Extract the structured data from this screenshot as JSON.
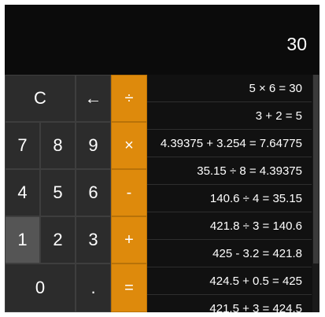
{
  "display": {
    "value": "30"
  },
  "keypad": {
    "clear": "C",
    "backspace": "←",
    "divide": "÷",
    "seven": "7",
    "eight": "8",
    "nine": "9",
    "multiply": "×",
    "four": "4",
    "five": "5",
    "six": "6",
    "subtract": "-",
    "one": "1",
    "two": "2",
    "three": "3",
    "add": "+",
    "zero": "0",
    "decimal": ".",
    "equals": "="
  },
  "history": {
    "items": [
      "5 × 6 = 30",
      "3 + 2 = 5",
      "4.39375 + 3.254 = 7.64775",
      "35.15 ÷ 8 = 4.39375",
      "140.6 ÷ 4 = 35.15",
      "421.8 ÷ 3 = 140.6",
      "425 - 3.2 = 421.8",
      "424.5 + 0.5 = 425",
      "421.5 + 3 = 424.5"
    ]
  },
  "colors": {
    "operator": "#de8a0c",
    "key": "#2c2c2c",
    "key_active": "#555555",
    "background": "#0f0f0f"
  }
}
